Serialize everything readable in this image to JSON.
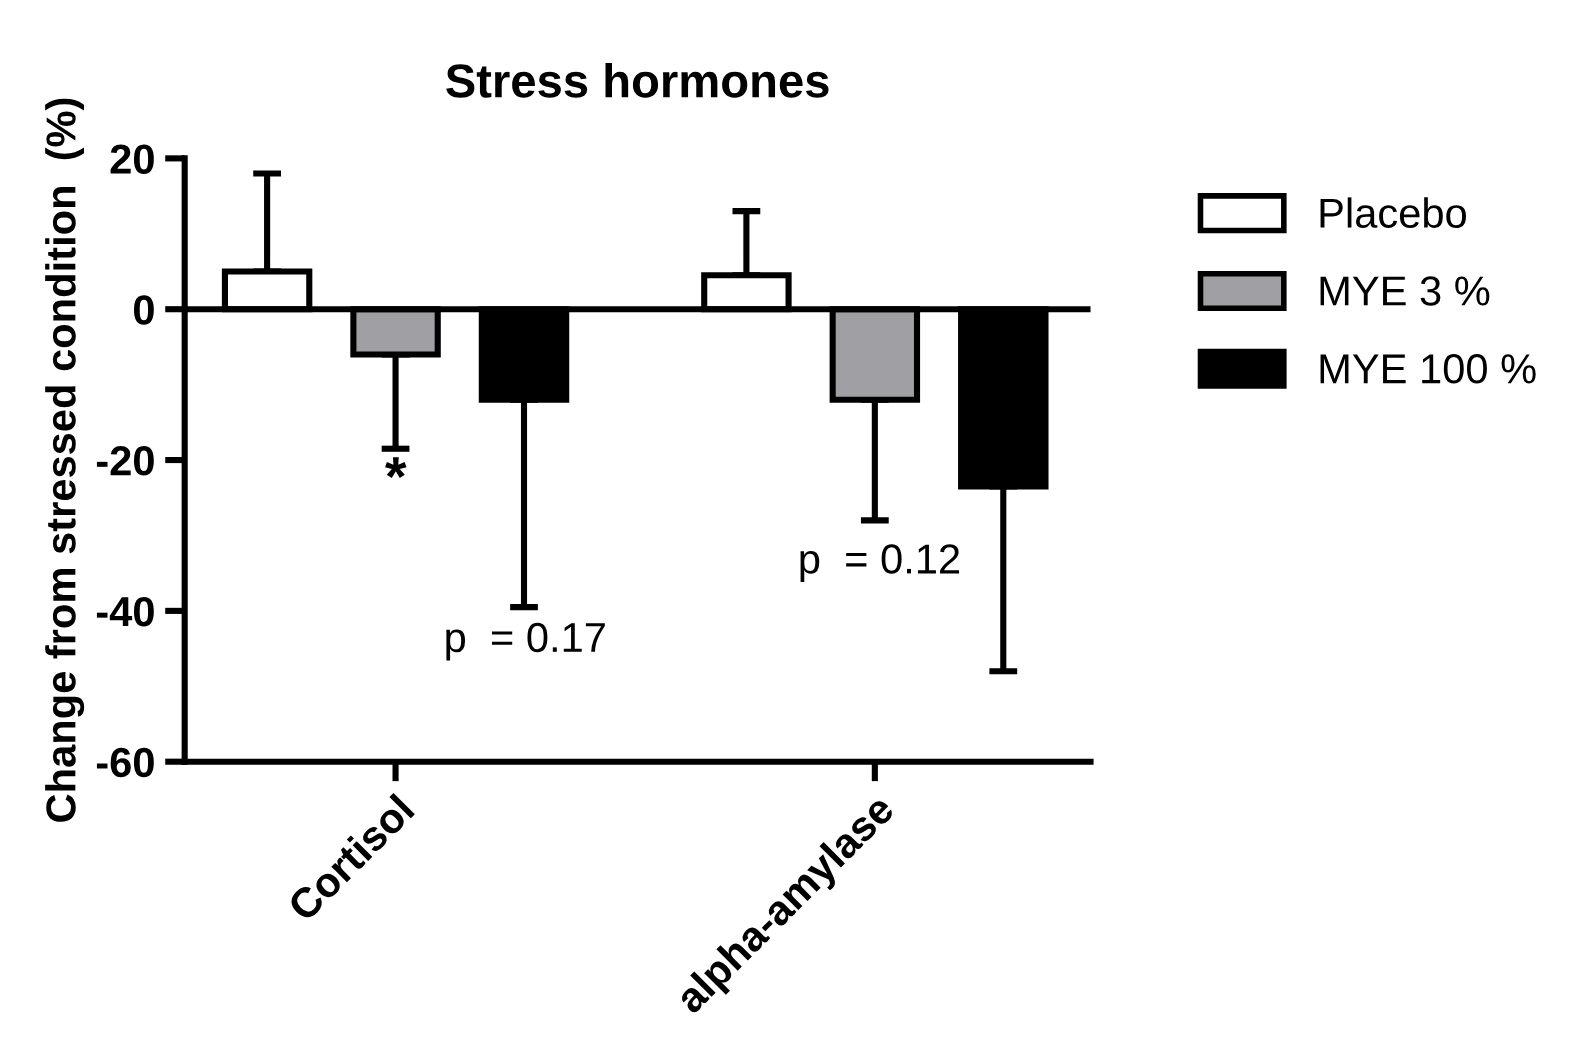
{
  "chart_data": {
    "type": "bar",
    "title": "Stress hormones",
    "ylabel": "Change from stressed condition  (%)",
    "categories": [
      "Cortisol",
      "alpha-amylase"
    ],
    "series": [
      {
        "name": "Placebo",
        "color": "#ffffff",
        "values": [
          5,
          4.5
        ],
        "errors": [
          [
            5,
            18
          ],
          [
            4.5,
            13
          ]
        ]
      },
      {
        "name": "MYE 3 %",
        "color": "#a0a0a4",
        "values": [
          -6,
          -12
        ],
        "errors": [
          [
            -18.5,
            -6
          ],
          [
            -28,
            -12
          ]
        ]
      },
      {
        "name": "MYE 100 %",
        "color": "#000000",
        "values": [
          -12,
          -23.5
        ],
        "errors": [
          [
            -39.5,
            -12
          ],
          [
            -48,
            -23.5
          ]
        ]
      }
    ],
    "annotations": [
      "*",
      "p  = 0.17",
      "p  = 0.12"
    ],
    "ref_lines": [
      {
        "axis": "y",
        "value": 0,
        "color": "#000000"
      }
    ],
    "ylim": [
      -60,
      20
    ],
    "yticks": [
      -60,
      -40,
      -20,
      0,
      20
    ],
    "grid": false,
    "legend": "top right"
  }
}
